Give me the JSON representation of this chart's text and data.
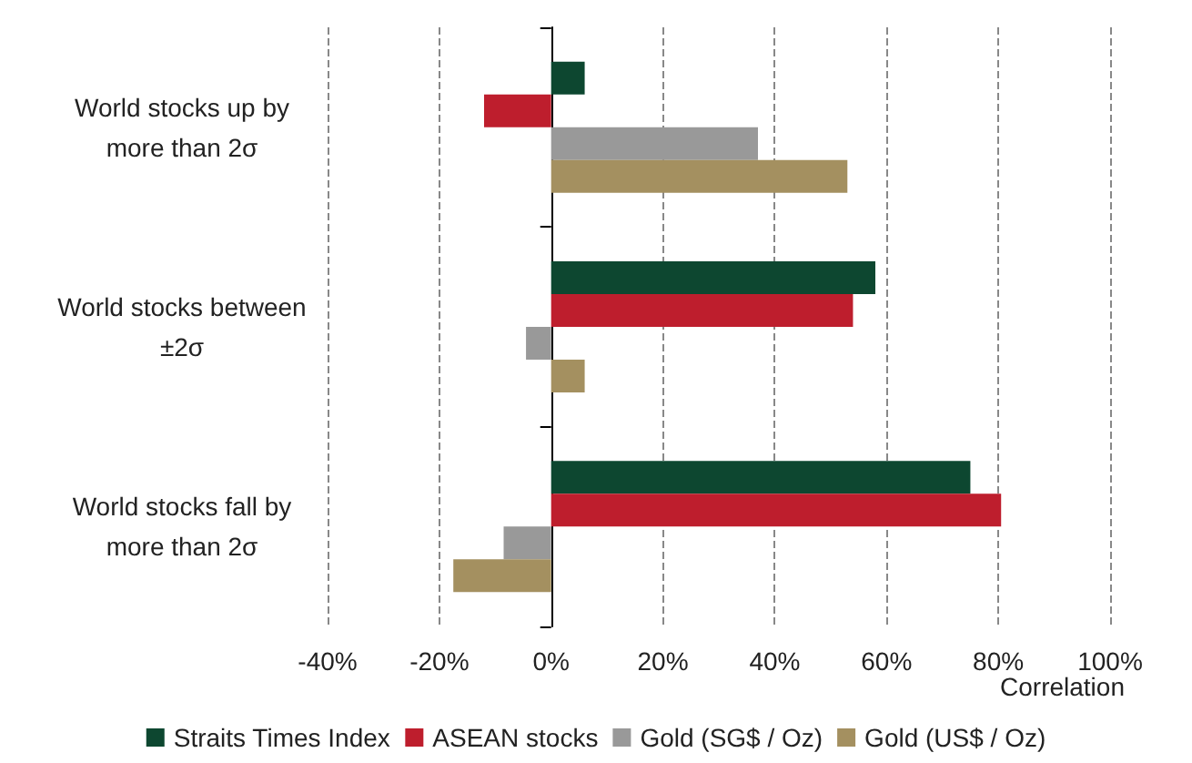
{
  "chart_data": {
    "type": "bar",
    "orientation": "horizontal",
    "xlabel": "Correlation",
    "categories": [
      "World stocks up by more than 2σ",
      "World stocks between ±2σ",
      "World stocks fall by more than 2σ"
    ],
    "series": [
      {
        "name": "Straits Times Index",
        "color": "#0d4730",
        "values": [
          6,
          58,
          75
        ]
      },
      {
        "name": "ASEAN stocks",
        "color": "#be1e2d",
        "values": [
          -12,
          54,
          80.5
        ]
      },
      {
        "name": "Gold (SG$ / Oz)",
        "color": "#999999",
        "values": [
          37,
          -4.5,
          -8.5
        ]
      },
      {
        "name": "Gold (US$ / Oz)",
        "color": "#a49060",
        "values": [
          53,
          6,
          -17.5
        ]
      }
    ],
    "xlim": [
      -40,
      100
    ],
    "xticks": [
      {
        "value": -40,
        "label": "-40%"
      },
      {
        "value": -20,
        "label": "-20%"
      },
      {
        "value": 0,
        "label": "0%"
      },
      {
        "value": 20,
        "label": "20%"
      },
      {
        "value": 40,
        "label": "40%"
      },
      {
        "value": 60,
        "label": "60%"
      },
      {
        "value": 80,
        "label": "80%"
      },
      {
        "value": 100,
        "label": "100%"
      }
    ],
    "grid": "x",
    "legend": "bottom"
  }
}
